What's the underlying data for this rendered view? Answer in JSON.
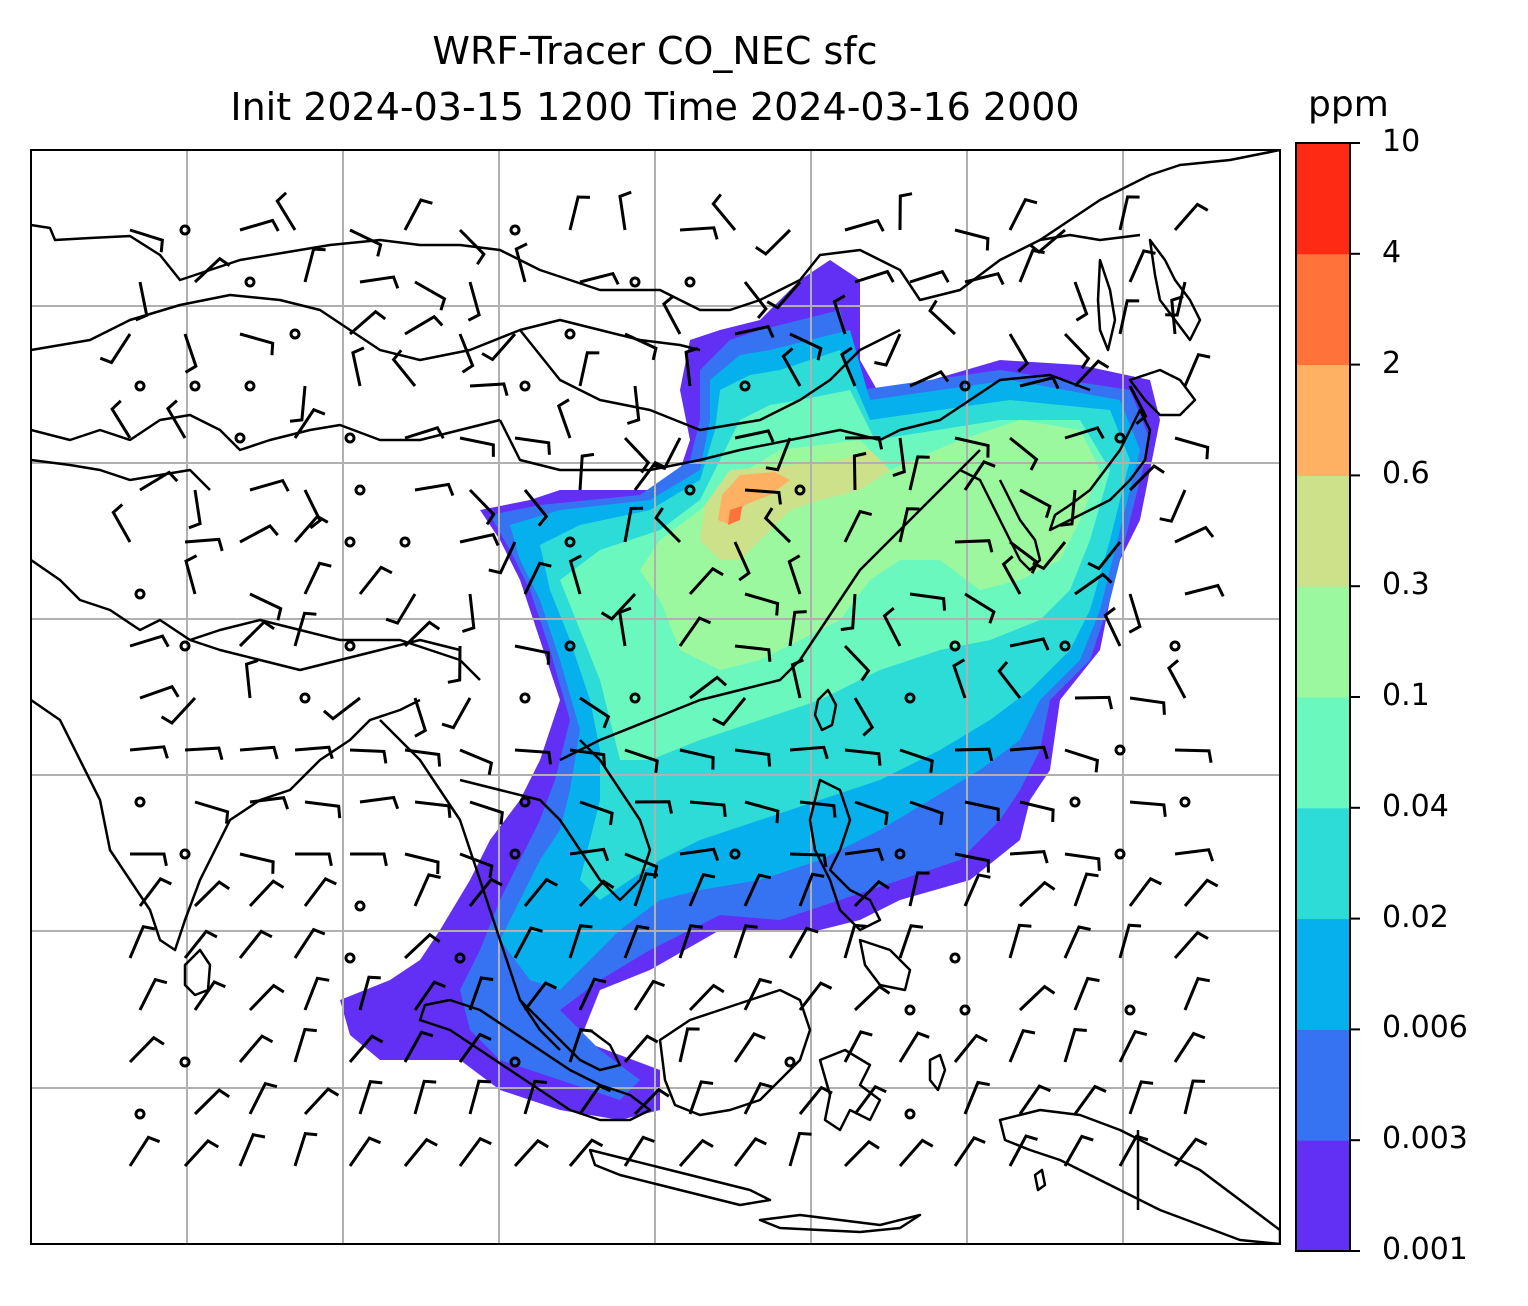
{
  "title": {
    "line1": "WRF-Tracer CO_NEC sfc",
    "line2": "Init 2024-03-15 1200 Time 2024-03-16 2000"
  },
  "colorbar": {
    "unit": "ppm",
    "levels": [
      "0.001",
      "0.003",
      "0.006",
      "0.02",
      "0.04",
      "0.1",
      "0.3",
      "0.6",
      "2",
      "4",
      "10"
    ],
    "colors": [
      "#6230f5",
      "#3673f2",
      "#06b0ec",
      "#2ddcd7",
      "#6bf8bf",
      "#9cf89f",
      "#cde08a",
      "#feb063",
      "#ff733b",
      "#ff2a14"
    ]
  },
  "map": {
    "field": "CO_NEC surface tracer concentration",
    "overlays": [
      "coastlines",
      "country borders",
      "gridlines",
      "wind barbs"
    ],
    "colors": {
      "land_outline": "#000000",
      "gridline": "#b0b0b0",
      "background": "#ffffff"
    }
  }
}
